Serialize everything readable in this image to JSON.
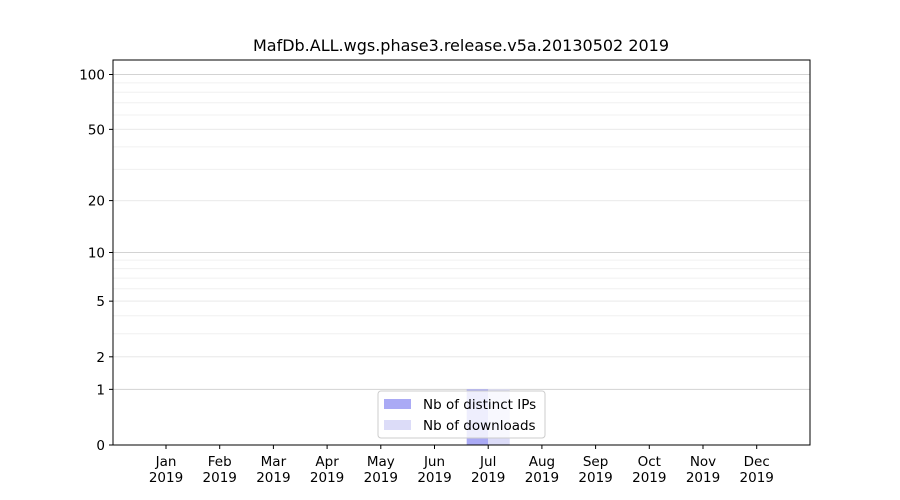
{
  "chart_data": {
    "type": "bar",
    "title": "MafDb.ALL.wgs.phase3.release.v5a.20130502 2019",
    "xlabel": "",
    "ylabel": "",
    "y_scale": "log(1+y)",
    "ylim": [
      0,
      120
    ],
    "grid": true,
    "legend_position": "bottom-center",
    "categories": [
      {
        "month": "Jan",
        "year": "2019"
      },
      {
        "month": "Feb",
        "year": "2019"
      },
      {
        "month": "Mar",
        "year": "2019"
      },
      {
        "month": "Apr",
        "year": "2019"
      },
      {
        "month": "May",
        "year": "2019"
      },
      {
        "month": "Jun",
        "year": "2019"
      },
      {
        "month": "Jul",
        "year": "2019"
      },
      {
        "month": "Aug",
        "year": "2019"
      },
      {
        "month": "Sep",
        "year": "2019"
      },
      {
        "month": "Oct",
        "year": "2019"
      },
      {
        "month": "Nov",
        "year": "2019"
      },
      {
        "month": "Dec",
        "year": "2019"
      }
    ],
    "y_ticks": [
      0,
      1,
      2,
      5,
      10,
      20,
      50,
      100
    ],
    "y_tick_labels": [
      "0",
      "1",
      "2",
      "5",
      "10",
      "20",
      "50",
      "100"
    ],
    "series": [
      {
        "name": "Nb of distinct IPs",
        "color": "#aaaaf5",
        "values": [
          0,
          0,
          0,
          0,
          0,
          0,
          1,
          0,
          0,
          0,
          0,
          0
        ]
      },
      {
        "name": "Nb of downloads",
        "color": "#dcdcf8",
        "values": [
          0,
          0,
          0,
          0,
          0,
          0,
          1,
          0,
          0,
          0,
          0,
          0
        ]
      }
    ]
  }
}
